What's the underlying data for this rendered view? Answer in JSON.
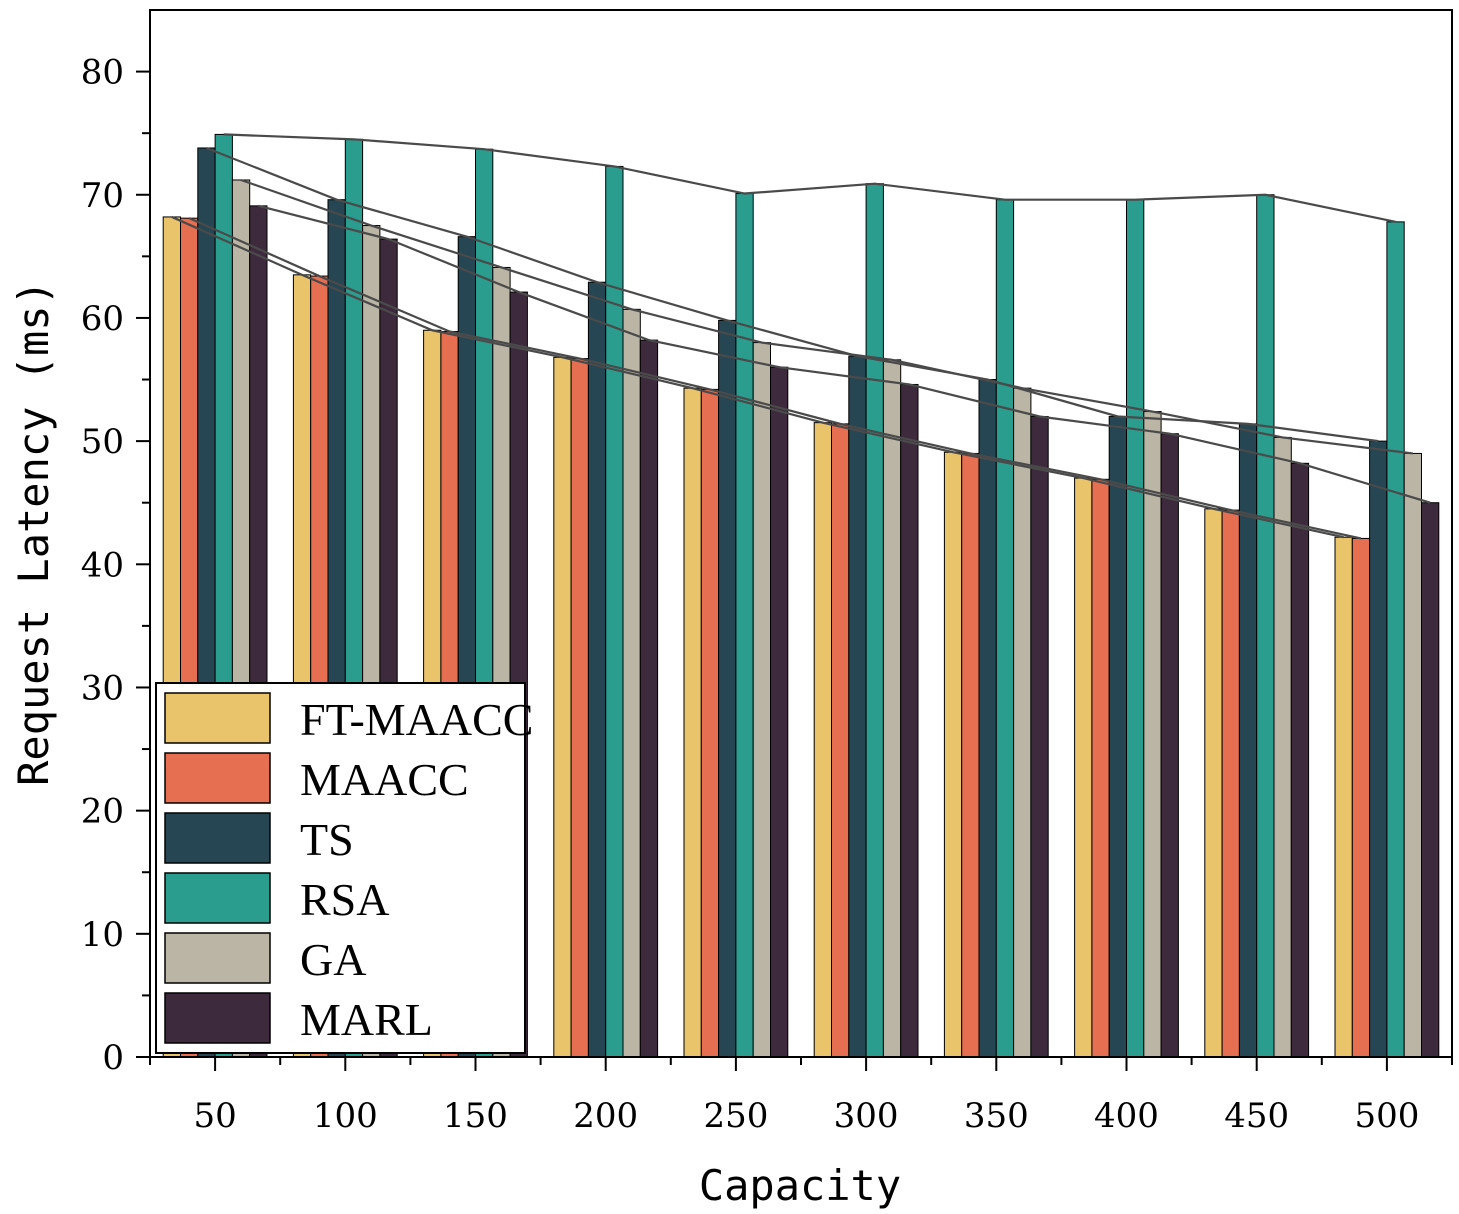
{
  "chart_data": {
    "type": "bar",
    "title": "",
    "xlabel": "Capacity",
    "ylabel": "Request Latency (ms)",
    "ylim": [
      0,
      85
    ],
    "yticks": [
      0,
      10,
      20,
      30,
      40,
      50,
      60,
      70,
      80
    ],
    "categories": [
      "50",
      "100",
      "150",
      "200",
      "250",
      "300",
      "350",
      "400",
      "450",
      "500"
    ],
    "legend_position": "bottom-left",
    "grid": false,
    "series": [
      {
        "name": "FT-MAACC",
        "color": "#E9C46A",
        "values": [
          68.2,
          63.5,
          59.0,
          56.8,
          54.3,
          51.5,
          49.1,
          47.0,
          44.5,
          42.2
        ]
      },
      {
        "name": "MAACC",
        "color": "#E76F51",
        "values": [
          68.1,
          63.4,
          58.9,
          56.7,
          54.2,
          51.4,
          49.0,
          46.9,
          44.4,
          42.1
        ]
      },
      {
        "name": "TS",
        "color": "#264653",
        "values": [
          73.8,
          69.6,
          66.6,
          62.9,
          59.8,
          56.9,
          55.0,
          52.0,
          51.4,
          50.0
        ]
      },
      {
        "name": "RSA",
        "color": "#2A9D8F",
        "values": [
          74.9,
          74.5,
          73.7,
          72.3,
          70.1,
          70.9,
          69.6,
          69.6,
          70.0,
          67.8
        ]
      },
      {
        "name": "GA",
        "color": "#BAB5A4",
        "values": [
          71.2,
          67.5,
          64.1,
          60.7,
          58.0,
          56.6,
          54.3,
          52.4,
          50.3,
          49.0
        ]
      },
      {
        "name": "MARL",
        "color": "#3E2A3D",
        "values": [
          69.1,
          66.4,
          62.1,
          58.2,
          56.0,
          54.6,
          52.0,
          50.6,
          48.2,
          45.0
        ]
      }
    ]
  }
}
